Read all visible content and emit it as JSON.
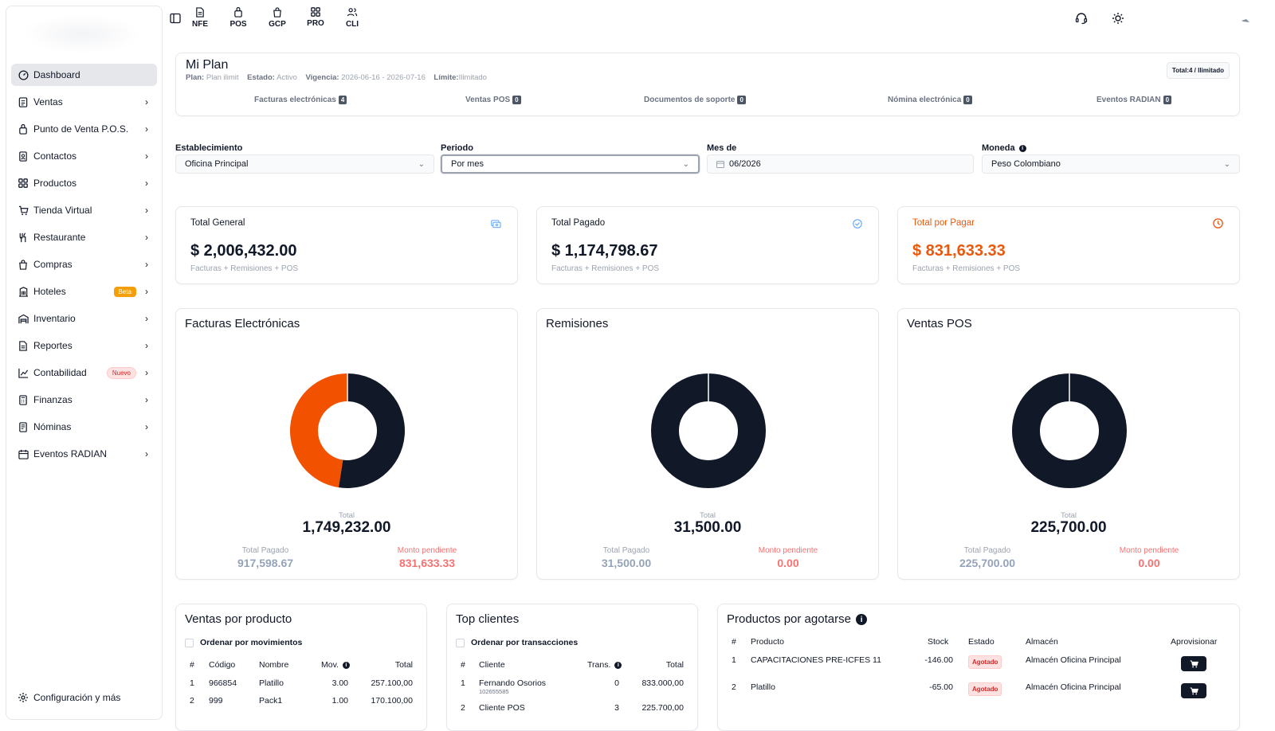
{
  "sidebar": {
    "items": [
      {
        "label": "Dashboard",
        "icon": "dashboard-icon",
        "active": true
      },
      {
        "label": "Ventas",
        "icon": "document-icon"
      },
      {
        "label": "Punto de Venta P.O.S.",
        "icon": "pos-icon"
      },
      {
        "label": "Contactos",
        "icon": "contacts-icon"
      },
      {
        "label": "Productos",
        "icon": "grid-icon"
      },
      {
        "label": "Tienda Virtual",
        "icon": "cart-icon"
      },
      {
        "label": "Restaurante",
        "icon": "utensils-icon"
      },
      {
        "label": "Compras",
        "icon": "bag-icon"
      },
      {
        "label": "Hoteles",
        "icon": "building-icon",
        "badge": "Beta"
      },
      {
        "label": "Inventario",
        "icon": "warehouse-icon"
      },
      {
        "label": "Reportes",
        "icon": "report-icon"
      },
      {
        "label": "Contabilidad",
        "icon": "chart-icon",
        "badge": "Nuevo"
      },
      {
        "label": "Finanzas",
        "icon": "calculator-icon"
      },
      {
        "label": "Nóminas",
        "icon": "payroll-icon"
      },
      {
        "label": "Eventos RADIAN",
        "icon": "calendar-icon"
      }
    ],
    "config_label": "Configuración y más"
  },
  "topbar": {
    "modules": [
      "NFE",
      "POS",
      "GCP",
      "PRO",
      "CLI"
    ]
  },
  "plan": {
    "title": "Mi Plan",
    "plan_label": "Plan:",
    "plan_value": "Plan ilimit",
    "estado_label": "Estado:",
    "estado_value": "Activo",
    "vigencia_label": "Vigencia:",
    "vigencia_value": "2026-06-16 - 2026-07-16",
    "limite_label": "Límite:",
    "limite_value": "Ilimitado",
    "total_badge": "Total:4 / Ilimitado",
    "stats": [
      {
        "label": "Facturas electrónicas",
        "count": "4"
      },
      {
        "label": "Ventas POS",
        "count": "0"
      },
      {
        "label": "Documentos de soporte",
        "count": "0"
      },
      {
        "label": "Nómina electrónica",
        "count": "0"
      },
      {
        "label": "Eventos RADIAN",
        "count": "0"
      }
    ]
  },
  "filters": {
    "establecimiento": {
      "label": "Establecimiento",
      "value": "Oficina Principal"
    },
    "periodo": {
      "label": "Periodo",
      "value": "Por mes"
    },
    "mes": {
      "label": "Mes de",
      "value": "06/2026"
    },
    "moneda": {
      "label": "Moneda",
      "value": "Peso Colombiano"
    }
  },
  "summary": [
    {
      "label": "Total General",
      "amount": "$ 2,006,432.00",
      "sub": "Facturas + Remisiones + POS"
    },
    {
      "label": "Total Pagado",
      "amount": "$ 1,174,798.67",
      "sub": "Facturas + Remisiones + POS"
    },
    {
      "label": "Total por Pagar",
      "amount": "$ 831,633.33",
      "sub": "Facturas + Remisiones + POS"
    }
  ],
  "colors": {
    "dark": "#111827",
    "orange": "#f25100",
    "pending": "#f87171"
  },
  "charts": [
    {
      "title": "Facturas Electrónicas",
      "total_label": "Total",
      "total": "1,749,232.00",
      "paid_label": "Total Pagado",
      "paid": "917,598.67",
      "pending_label": "Monto pendiente",
      "pending": "831,633.33"
    },
    {
      "title": "Remisiones",
      "total_label": "Total",
      "total": "31,500.00",
      "paid_label": "Total Pagado",
      "paid": "31,500.00",
      "pending_label": "Monto pendiente",
      "pending": "0.00"
    },
    {
      "title": "Ventas POS",
      "total_label": "Total",
      "total": "225,700.00",
      "paid_label": "Total Pagado",
      "paid": "225,700.00",
      "pending_label": "Monto pendiente",
      "pending": "0.00"
    }
  ],
  "chart_data": [
    {
      "type": "pie",
      "title": "Facturas Electrónicas",
      "categories": [
        "Total Pagado",
        "Monto pendiente"
      ],
      "values": [
        917598.67,
        831633.33
      ]
    },
    {
      "type": "pie",
      "title": "Remisiones",
      "categories": [
        "Total Pagado",
        "Monto pendiente"
      ],
      "values": [
        31500.0,
        0
      ]
    },
    {
      "type": "pie",
      "title": "Ventas POS",
      "categories": [
        "Total Pagado",
        "Monto pendiente"
      ],
      "values": [
        225700.0,
        0
      ]
    }
  ],
  "ventas_producto": {
    "title": "Ventas por producto",
    "checkbox": "Ordenar por movimientos",
    "headers": [
      "#",
      "Código",
      "Nombre",
      "Mov.",
      "Total"
    ],
    "rows": [
      [
        "1",
        "966854",
        "Platillo",
        "3.00",
        "257.100,00"
      ],
      [
        "2",
        "999",
        "Pack1",
        "1.00",
        "170.100,00"
      ]
    ]
  },
  "top_clientes": {
    "title": "Top clientes",
    "checkbox": "Ordenar por transacciones",
    "headers": [
      "#",
      "Cliente",
      "Trans.",
      "Total"
    ],
    "rows": [
      {
        "n": "1",
        "cliente": "Fernando Osorios",
        "doc": "102655585",
        "trans": "0",
        "total": "833.000,00"
      },
      {
        "n": "2",
        "cliente": "Cliente POS",
        "doc": "",
        "trans": "3",
        "total": "225.700,00"
      }
    ]
  },
  "agotarse": {
    "title": "Productos por agotarse",
    "headers": [
      "#",
      "Producto",
      "Stock",
      "Estado",
      "Almacén",
      "Aprovisionar"
    ],
    "rows": [
      {
        "n": "1",
        "producto": "CAPACITACIONES PRE-ICFES 11",
        "stock": "-146.00",
        "estado": "Agotado",
        "almacen": "Almacén Oficina Principal"
      },
      {
        "n": "2",
        "producto": "Platillo",
        "stock": "-65.00",
        "estado": "Agotado",
        "almacen": "Almacén Oficina Principal"
      }
    ]
  }
}
